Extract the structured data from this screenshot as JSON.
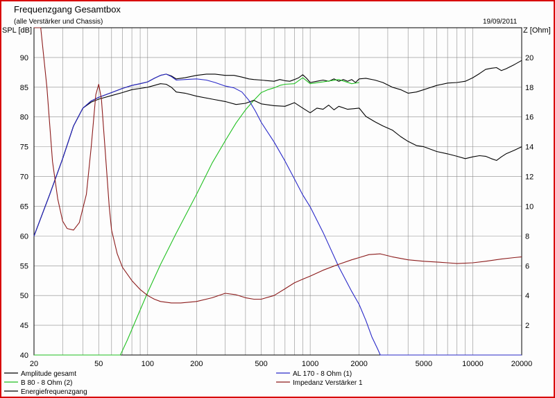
{
  "chart_data": {
    "type": "line",
    "title": "Frequenzgang Gesamtbox",
    "subtitle": "(alle Verstärker und Chassis)",
    "date": "19/09/2011",
    "ylabel_left": "SPL [dB]",
    "ylabel_right": "Z [Ohm]",
    "x_scale": "log",
    "xlim": [
      20,
      20000
    ],
    "ylim_left": [
      40,
      95
    ],
    "ylim_right": [
      0,
      22
    ],
    "x_ticks": [
      20,
      50,
      100,
      200,
      500,
      1000,
      2000,
      5000,
      10000,
      20000
    ],
    "x_tick_labels": [
      "20",
      "50",
      "100",
      "200",
      "500",
      "1000",
      "2000",
      "5000",
      "10000",
      "20000"
    ],
    "y_left_ticks": [
      40,
      45,
      50,
      55,
      60,
      65,
      70,
      75,
      80,
      85,
      90
    ],
    "y_left_tick_labels": [
      "40",
      "45",
      "50",
      "55",
      "60",
      "65",
      "70",
      "75",
      "80",
      "85",
      "90"
    ],
    "y_right_ticks": [
      2,
      4,
      6,
      8,
      10,
      12,
      14,
      16,
      18,
      20
    ],
    "y_right_tick_labels": [
      "2",
      "4",
      "6",
      "8",
      "10",
      "12",
      "14",
      "16",
      "18",
      "20"
    ],
    "grid": true,
    "legend_position": "bottom",
    "series": [
      {
        "name": "Amplitude gesamt",
        "color": "#000000",
        "axis": "left",
        "x": [
          20,
          25,
          30,
          35,
          40,
          45,
          50,
          60,
          70,
          80,
          90,
          100,
          110,
          120,
          130,
          140,
          150,
          170,
          200,
          230,
          260,
          300,
          340,
          380,
          420,
          450,
          500,
          550,
          600,
          650,
          700,
          750,
          800,
          850,
          900,
          950,
          1000,
          1100,
          1200,
          1300,
          1400,
          1500,
          1600,
          1700,
          1800,
          1900,
          2000,
          2200,
          2500,
          2800,
          3200,
          3600,
          4000,
          4500,
          5000,
          6000,
          7000,
          8000,
          9000,
          10000,
          11000,
          12000,
          13000,
          14000,
          15000,
          16000,
          18000,
          20000
        ],
        "y": [
          60,
          67,
          73,
          78.5,
          81.5,
          82.7,
          83.3,
          84.1,
          84.8,
          85.3,
          85.6,
          85.9,
          86.5,
          87.0,
          87.2,
          86.9,
          86.4,
          86.6,
          87.0,
          87.2,
          87.2,
          87.0,
          87.0,
          86.7,
          86.4,
          86.3,
          86.2,
          86.1,
          86.0,
          86.3,
          86.1,
          86.0,
          86.3,
          86.6,
          87.1,
          86.5,
          85.8,
          86.0,
          86.2,
          86.0,
          86.4,
          86.0,
          86.3,
          86.0,
          86.3,
          85.8,
          86.4,
          86.5,
          86.2,
          85.8,
          85.0,
          84.6,
          84.0,
          84.2,
          84.6,
          85.3,
          85.7,
          85.8,
          86.0,
          86.6,
          87.3,
          88.0,
          88.2,
          88.3,
          87.8,
          88.1,
          88.8,
          89.5
        ]
      },
      {
        "name": "B 80 - 8 Ohm (2)",
        "color": "#20c020",
        "axis": "left",
        "x": [
          20,
          60,
          68,
          75,
          85,
          100,
          120,
          150,
          200,
          250,
          300,
          350,
          400,
          450,
          500,
          550,
          600,
          650,
          700,
          800,
          900,
          1000,
          1200,
          1500,
          1800,
          2000
        ],
        "y": [
          40,
          40,
          40,
          42.5,
          46,
          50.5,
          55.2,
          60.5,
          67,
          72.3,
          76,
          79,
          81.2,
          82.8,
          84.1,
          84.6,
          84.9,
          85.3,
          85.5,
          85.6,
          86.6,
          85.6,
          85.9,
          86.3,
          85.6,
          85.8
        ]
      },
      {
        "name": "Energiefrequenzgang",
        "color": "#000000",
        "axis": "left",
        "x": [
          20,
          25,
          30,
          35,
          40,
          45,
          50,
          60,
          70,
          80,
          90,
          100,
          110,
          120,
          130,
          140,
          150,
          170,
          200,
          250,
          300,
          350,
          400,
          450,
          500,
          600,
          700,
          800,
          900,
          1000,
          1100,
          1200,
          1300,
          1400,
          1500,
          1700,
          2000,
          2200,
          2500,
          2800,
          3200,
          3600,
          4000,
          4500,
          5000,
          6000,
          7000,
          8000,
          9000,
          10000,
          11000,
          12000,
          13000,
          14000,
          15000,
          16000,
          18000,
          20000
        ],
        "y": [
          60,
          67,
          73,
          78.5,
          81.5,
          82.5,
          83.0,
          83.6,
          84.1,
          84.6,
          84.8,
          85.0,
          85.3,
          85.6,
          85.5,
          85.0,
          84.2,
          84.0,
          83.5,
          83.0,
          82.6,
          82.1,
          82.3,
          82.8,
          82.2,
          81.9,
          81.8,
          82.4,
          81.5,
          80.7,
          81.5,
          81.3,
          82.0,
          81.2,
          81.8,
          81.3,
          81.5,
          80.1,
          79.2,
          78.5,
          77.8,
          76.7,
          75.9,
          75.2,
          75.0,
          74.2,
          73.8,
          73.4,
          73.0,
          73.3,
          73.5,
          73.4,
          73.0,
          72.7,
          73.3,
          73.8,
          74.4,
          75.0
        ]
      },
      {
        "name": "AL 170 - 8 Ohm (1)",
        "color": "#2828c8",
        "axis": "left",
        "x": [
          20,
          25,
          30,
          35,
          40,
          45,
          50,
          60,
          70,
          80,
          90,
          100,
          110,
          120,
          130,
          140,
          150,
          170,
          200,
          230,
          260,
          300,
          340,
          380,
          420,
          460,
          500,
          600,
          700,
          800,
          900,
          1000,
          1200,
          1500,
          1800,
          2000,
          2200,
          2400,
          2600,
          2700,
          3000,
          5000,
          10000,
          20000
        ],
        "y": [
          60,
          67,
          73,
          78.5,
          81.5,
          82.7,
          83.3,
          84.1,
          84.8,
          85.3,
          85.6,
          85.9,
          86.5,
          87.0,
          87.2,
          86.8,
          86.2,
          86.3,
          86.4,
          86.2,
          85.8,
          85.2,
          84.9,
          84.2,
          82.8,
          81.0,
          79.1,
          75.8,
          72.6,
          69.6,
          66.9,
          64.9,
          60.6,
          54.8,
          50.7,
          48.5,
          45.8,
          43.0,
          41.0,
          40.0,
          40.0,
          40.0,
          40.0,
          40.0
        ]
      },
      {
        "name": "Impedanz Verstärker 1",
        "color": "#8b1a1a",
        "axis": "right",
        "x": [
          20,
          22,
          24,
          26,
          28,
          30,
          32,
          35,
          38,
          42,
          45,
          48,
          50,
          52,
          55,
          58,
          60,
          65,
          70,
          80,
          90,
          100,
          110,
          120,
          140,
          160,
          200,
          250,
          300,
          350,
          400,
          450,
          500,
          600,
          700,
          800,
          900,
          1000,
          1200,
          1500,
          1800,
          2000,
          2300,
          2700,
          3200,
          4000,
          5000,
          6000,
          7000,
          8000,
          10000,
          12000,
          15000,
          18000,
          20000
        ],
        "y": [
          22,
          22,
          18,
          13,
          10.5,
          9.0,
          8.5,
          8.4,
          8.9,
          10.8,
          14.0,
          17.5,
          18.2,
          17.2,
          13.5,
          10.0,
          8.4,
          6.8,
          5.9,
          5.0,
          4.4,
          4.0,
          3.75,
          3.6,
          3.5,
          3.5,
          3.6,
          3.85,
          4.15,
          4.05,
          3.85,
          3.75,
          3.75,
          4.0,
          4.45,
          4.85,
          5.1,
          5.3,
          5.7,
          6.1,
          6.4,
          6.55,
          6.75,
          6.8,
          6.6,
          6.4,
          6.3,
          6.25,
          6.2,
          6.15,
          6.2,
          6.3,
          6.45,
          6.55,
          6.6
        ]
      }
    ]
  }
}
